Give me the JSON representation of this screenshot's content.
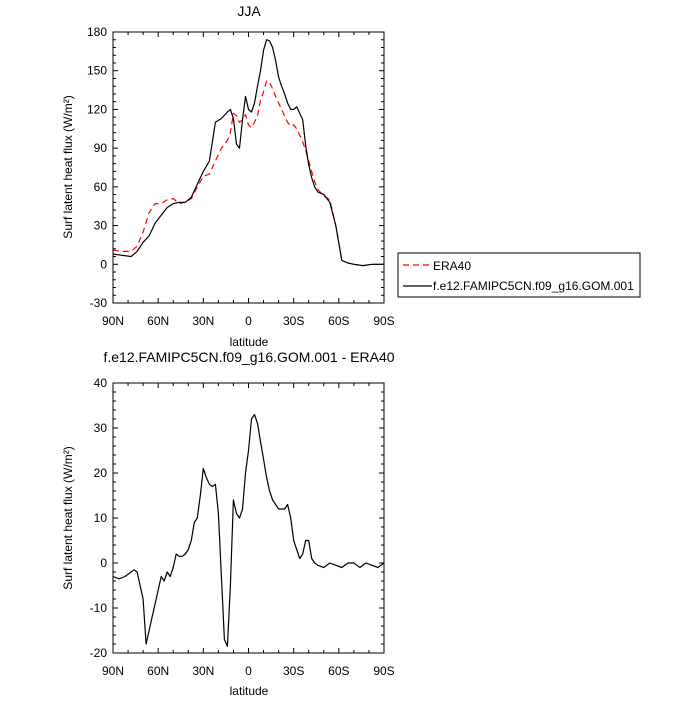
{
  "chart_data": [
    {
      "type": "line",
      "title": "JJA",
      "xlabel": "latitude",
      "ylabel": "Surf latent heat flux (W/m²)",
      "xlim": [
        90,
        -90
      ],
      "ylim": [
        -30,
        180
      ],
      "xticks": [
        90,
        60,
        30,
        0,
        -30,
        -60,
        -90
      ],
      "xticklabels": [
        "90N",
        "60N",
        "30N",
        "0",
        "30S",
        "60S",
        "90S"
      ],
      "yticks": [
        -30,
        0,
        30,
        60,
        90,
        120,
        150,
        180
      ],
      "yticklabels": [
        "-30",
        "0",
        "30",
        "60",
        "90",
        "120",
        "150",
        "180"
      ],
      "legend_position": "right",
      "series": [
        {
          "name": "ERA40",
          "color": "#ff0000",
          "dash": "dashed",
          "x": [
            90,
            84,
            78,
            74,
            70,
            66,
            62,
            58,
            54,
            50,
            46,
            42,
            38,
            34,
            30,
            26,
            22,
            18,
            14,
            12,
            10,
            8,
            6,
            4,
            2,
            0,
            -2,
            -4,
            -6,
            -8,
            -10,
            -12,
            -14,
            -16,
            -18,
            -20,
            -22,
            -24,
            -26,
            -28,
            -30,
            -32,
            -34,
            -36,
            -38,
            -40,
            -42,
            -44,
            -46,
            -50,
            -54,
            -58,
            -62,
            -66,
            -70,
            -76,
            -82,
            -90
          ],
          "y": [
            11,
            10,
            10,
            14,
            25,
            40,
            47,
            47,
            50,
            51,
            47,
            48,
            51,
            60,
            68,
            70,
            80,
            90,
            96,
            102,
            117,
            115,
            110,
            112,
            116,
            108,
            106,
            110,
            115,
            127,
            134,
            142,
            141,
            136,
            130,
            125,
            120,
            115,
            110,
            107,
            108,
            105,
            100,
            95,
            88,
            80,
            72,
            64,
            58,
            53,
            50,
            30,
            3,
            1,
            0,
            -1,
            0,
            0
          ]
        },
        {
          "name": "f.e12.FAMIPC5CN.f09_g16.GOM.001",
          "color": "#000000",
          "dash": "solid",
          "x": [
            90,
            84,
            78,
            74,
            70,
            66,
            62,
            58,
            54,
            50,
            46,
            42,
            38,
            34,
            30,
            26,
            22,
            18,
            14,
            12,
            10,
            8,
            6,
            4,
            2,
            0,
            -2,
            -4,
            -6,
            -8,
            -10,
            -12,
            -14,
            -16,
            -18,
            -20,
            -22,
            -24,
            -26,
            -28,
            -30,
            -32,
            -34,
            -36,
            -38,
            -40,
            -42,
            -44,
            -46,
            -50,
            -54,
            -58,
            -62,
            -66,
            -70,
            -76,
            -82,
            -90
          ],
          "y": [
            8,
            7,
            6,
            10,
            17,
            22,
            32,
            38,
            44,
            47,
            48,
            48,
            52,
            62,
            72,
            80,
            110,
            113,
            118,
            120,
            113,
            93,
            90,
            112,
            130,
            120,
            118,
            125,
            138,
            150,
            166,
            174,
            173,
            168,
            158,
            145,
            138,
            132,
            125,
            120,
            120,
            122,
            117,
            112,
            92,
            77,
            67,
            60,
            56,
            54,
            48,
            30,
            3,
            1,
            0,
            -1,
            0,
            0
          ]
        }
      ]
    },
    {
      "type": "line",
      "title": "f.e12.FAMIPC5CN.f09_g16.GOM.001 - ERA40",
      "xlabel": "latitude",
      "ylabel": "Surf latent heat flux (W/m²)",
      "xlim": [
        90,
        -90
      ],
      "ylim": [
        -20,
        40
      ],
      "xticks": [
        90,
        60,
        30,
        0,
        -30,
        -60,
        -90
      ],
      "xticklabels": [
        "90N",
        "60N",
        "30N",
        "0",
        "30S",
        "60S",
        "90S"
      ],
      "yticks": [
        -20,
        -10,
        0,
        10,
        20,
        30,
        40
      ],
      "yticklabels": [
        "-20",
        "-10",
        "0",
        "10",
        "20",
        "30",
        "40"
      ],
      "series": [
        {
          "color": "#000000",
          "dash": "solid",
          "x": [
            90,
            86,
            82,
            78,
            76,
            74,
            72,
            70,
            68,
            66,
            64,
            62,
            60,
            58,
            56,
            54,
            52,
            50,
            48,
            46,
            44,
            42,
            40,
            38,
            36,
            34,
            32,
            30,
            28,
            26,
            24,
            22,
            20,
            18,
            16,
            14,
            12,
            10,
            8,
            6,
            4,
            2,
            0,
            -2,
            -4,
            -6,
            -8,
            -10,
            -12,
            -14,
            -16,
            -18,
            -20,
            -22,
            -24,
            -26,
            -28,
            -30,
            -32,
            -34,
            -36,
            -38,
            -40,
            -42,
            -44,
            -46,
            -50,
            -54,
            -58,
            -62,
            -66,
            -70,
            -72,
            -74,
            -78,
            -82,
            -86,
            -90
          ],
          "y": [
            -3,
            -3.5,
            -3,
            -2,
            -1.5,
            -2,
            -5,
            -8,
            -18,
            -15,
            -12,
            -9,
            -6,
            -3,
            -4,
            -2,
            -3,
            -1,
            2,
            1.5,
            1.5,
            2,
            3,
            5,
            9,
            10,
            15,
            21,
            19,
            17.5,
            17,
            17.5,
            11,
            -3,
            -17,
            -18.5,
            -5,
            14,
            11,
            10,
            12,
            20,
            25,
            32,
            33,
            31,
            27,
            23,
            19,
            16,
            14,
            13,
            12,
            12,
            12,
            13,
            10,
            5,
            3,
            1,
            2,
            5,
            5,
            1,
            0,
            -0.5,
            -1,
            0,
            -0.5,
            -1,
            0,
            0,
            -0.5,
            -1,
            0,
            -0.5,
            -1,
            0
          ]
        }
      ]
    }
  ]
}
